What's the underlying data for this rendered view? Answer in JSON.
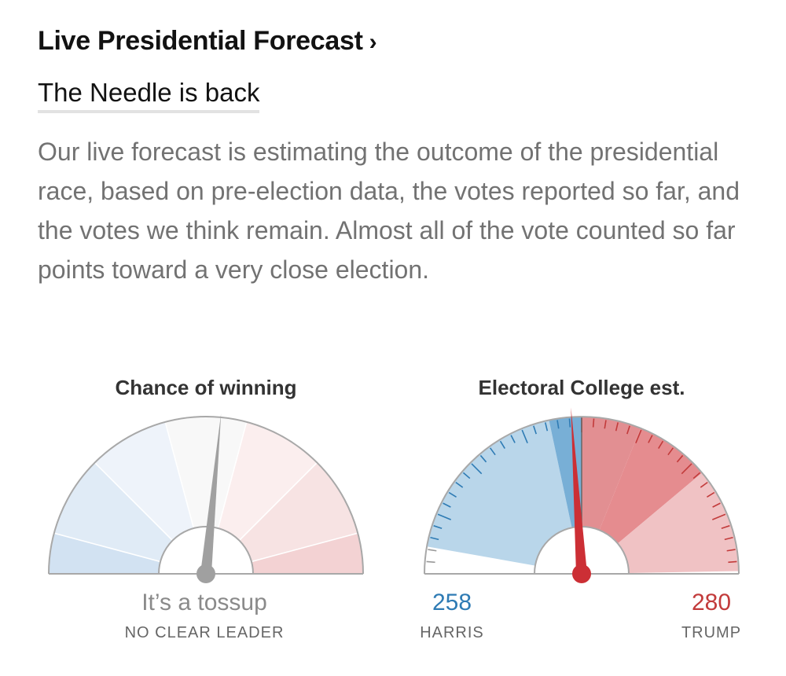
{
  "header": {
    "title": "Live Presidential Forecast",
    "chevron": "›",
    "subtitle": "The Needle is back",
    "description": "Our live forecast is estimating the outcome of the presidential race, based on pre-election data, the votes reported so far, and the votes we think remain. Almost all of the vote counted so far points toward a very close election."
  },
  "colors": {
    "dem_light": "#dce8f5",
    "dem_mid": "#b9d6ea",
    "dem_dark": "#78afd6",
    "dem_tick": "#2e7bb4",
    "rep_light": "#f7dfdf",
    "rep_mid": "#f0c2c4",
    "rep_dark": "#e28f92",
    "rep_tick": "#c23b3b",
    "needle_gray": "#a0a0a0",
    "needle_red": "#cc2f35",
    "outline": "#a8a8a8"
  },
  "chart_data": [
    {
      "type": "gauge",
      "title": "Chance of winning",
      "scale": [
        0,
        100
      ],
      "value": 53,
      "value_unit": "% Trump chance (needle position, estimated)",
      "bands": [
        "Harris very likely",
        "Harris likely",
        "Harris lean",
        "Tossup",
        "Trump lean",
        "Trump likely",
        "Trump very likely"
      ],
      "status_label": "It’s a tossup",
      "status_sublabel": "NO CLEAR LEADER"
    },
    {
      "type": "gauge",
      "title": "Electoral College est.",
      "scale": [
        0,
        538
      ],
      "midpoint": 269,
      "value": 280,
      "series": [
        {
          "name": "HARRIS",
          "value": 258,
          "color": "#2e7bb4"
        },
        {
          "name": "TRUMP",
          "value": 280,
          "color": "#c23b3b"
        }
      ],
      "harris_label": "HARRIS",
      "harris_value": "258",
      "trump_label": "TRUMP",
      "trump_value": "280"
    }
  ]
}
